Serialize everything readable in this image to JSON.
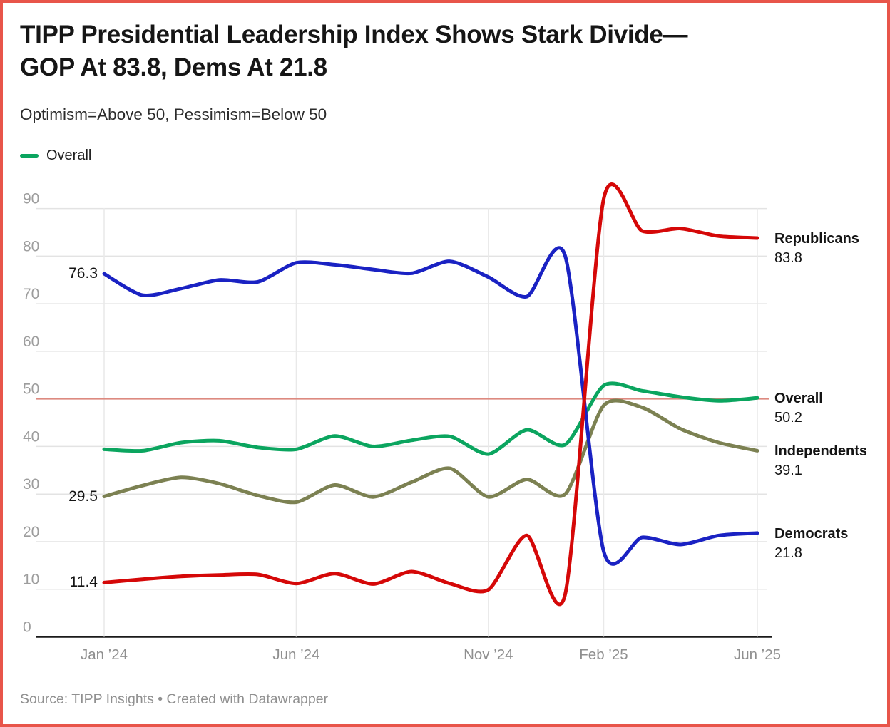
{
  "header": {
    "title_line1": "TIPP Presidential Leadership Index Shows Stark Divide—",
    "title_line2": "GOP At 83.8, Dems At 21.8",
    "subtitle": "Optimism=Above 50, Pessimism=Below 50"
  },
  "legend": {
    "items": [
      {
        "label": "Overall",
        "color": "#0ba55f"
      }
    ]
  },
  "chart_data": {
    "type": "line",
    "x": [
      "Jan '24",
      "Feb '24",
      "Mar '24",
      "Apr '24",
      "May '24",
      "Jun '24",
      "Jul '24",
      "Aug '24",
      "Sep '24",
      "Oct '24",
      "Nov '24",
      "Dec '24",
      "Jan '25",
      "Feb '25",
      "Mar '25",
      "Apr '25",
      "May '25",
      "Jun '25"
    ],
    "x_tick_labels": [
      {
        "label": "Jan ’24",
        "index": 0
      },
      {
        "label": "Jun ’24",
        "index": 5
      },
      {
        "label": "Nov ’24",
        "index": 10
      },
      {
        "label": "Feb ’25",
        "index": 13
      },
      {
        "label": "Jun ’25",
        "index": 17
      }
    ],
    "y_ticks": [
      0,
      10,
      20,
      30,
      40,
      50,
      60,
      70,
      80,
      90
    ],
    "ylim": [
      0,
      95
    ],
    "grid": true,
    "legend_position": "top-left",
    "reference_line": {
      "value": 50,
      "color": "#dd8a80"
    },
    "series": [
      {
        "name": "Independents",
        "color": "#7c8152",
        "values": [
          29.5,
          31.8,
          33.5,
          32.2,
          29.7,
          28.3,
          31.9,
          29.4,
          32.5,
          35.4,
          29.4,
          33.1,
          30.0,
          48.6,
          48.2,
          43.7,
          40.8,
          39.1
        ],
        "start_label": "29.5",
        "end_label": {
          "name": "Independents",
          "value": "39.1"
        }
      },
      {
        "name": "Overall",
        "color": "#0ba55f",
        "values": [
          39.4,
          39.1,
          40.8,
          41.2,
          39.8,
          39.4,
          42.2,
          40.0,
          41.3,
          42.1,
          38.4,
          43.5,
          40.4,
          52.8,
          51.7,
          50.4,
          49.6,
          50.2
        ],
        "start_label": null,
        "end_label": {
          "name": "Overall",
          "value": "50.2"
        }
      },
      {
        "name": "Democrats",
        "color": "#1a22c3",
        "values": [
          76.3,
          71.8,
          73.2,
          75.0,
          74.6,
          78.6,
          78.2,
          77.2,
          76.4,
          78.9,
          75.6,
          71.5,
          80.0,
          18.0,
          20.9,
          19.4,
          21.3,
          21.8
        ],
        "start_label": "76.3",
        "end_label": {
          "name": "Democrats",
          "value": "21.8"
        }
      },
      {
        "name": "Republicans",
        "color": "#d50808",
        "values": [
          11.4,
          12.1,
          12.7,
          13.0,
          13.1,
          11.2,
          13.3,
          11.1,
          13.7,
          11.2,
          9.9,
          21.3,
          9.0,
          92.0,
          85.3,
          85.8,
          84.2,
          83.8
        ],
        "start_label": "11.4",
        "end_label": {
          "name": "Republicans",
          "value": "83.8"
        }
      }
    ],
    "title": "TIPP Presidential Leadership Index Shows Stark Divide—GOP At 83.8, Dems At 21.8",
    "xlabel": "",
    "ylabel": "",
    "colors": {
      "frame": "#e8554a",
      "grid": "#e3e3e3",
      "grid_vertical": "#e9e9e9",
      "axis": "#1a1a1a",
      "tick_text": "#9d9d9d",
      "x_tick_text": "#8f8f8f"
    }
  },
  "footer": {
    "source": "Source: TIPP Insights • Created with Datawrapper"
  }
}
